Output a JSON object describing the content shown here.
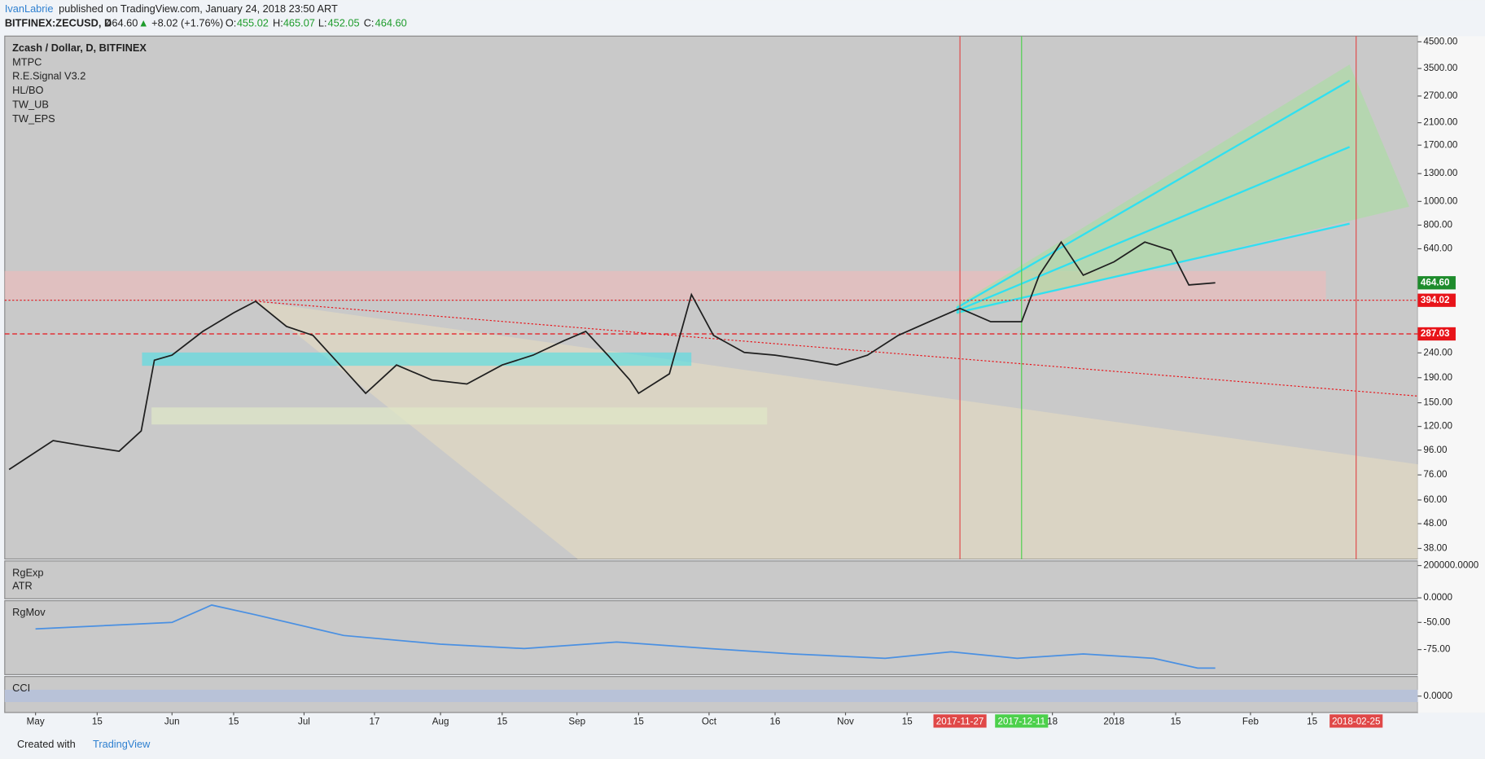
{
  "header": {
    "author": "IvanLabrie",
    "published": "published on TradingView.com, January 24, 2018 23:50 ART",
    "symbol": "BITFINEX:ZECUSD, D",
    "last": "464.60",
    "change": "+8.02 (+1.76%)",
    "open_label": "O:",
    "open": "455.02",
    "high_label": "H:",
    "high": "465.07",
    "low_label": "L:",
    "low": "452.05",
    "close_label": "C:",
    "close": "464.60"
  },
  "studies": [
    "MTPC",
    "R.E.Signal V3.2",
    "HL/BO",
    "TW_UB",
    "TW_EPS"
  ],
  "footer": {
    "created": "Created with",
    "brand": "TradingView"
  },
  "chart_data": [
    {
      "type": "line",
      "title": "Zcash / Dollar, D, BITFINEX",
      "log_scale": true,
      "color": "#1f1f1f",
      "x": [
        "2017-04-25",
        "2017-05-05",
        "2017-05-12",
        "2017-05-20",
        "2017-05-25",
        "2017-05-28",
        "2017-06-01",
        "2017-06-08",
        "2017-06-15",
        "2017-06-20",
        "2017-06-27",
        "2017-07-03",
        "2017-07-10",
        "2017-07-15",
        "2017-07-22",
        "2017-07-30",
        "2017-08-07",
        "2017-08-15",
        "2017-08-22",
        "2017-08-29",
        "2017-09-03",
        "2017-09-08",
        "2017-09-13",
        "2017-09-15",
        "2017-09-22",
        "2017-09-27",
        "2017-10-02",
        "2017-10-09",
        "2017-10-16",
        "2017-10-23",
        "2017-10-30",
        "2017-11-06",
        "2017-11-13",
        "2017-11-20",
        "2017-11-27",
        "2017-12-04",
        "2017-12-11",
        "2017-12-15",
        "2017-12-20",
        "2017-12-25",
        "2018-01-01",
        "2018-01-08",
        "2018-01-14",
        "2018-01-18",
        "2018-01-24"
      ],
      "values": [
        80,
        105,
        100,
        95,
        115,
        224,
        235,
        294,
        350,
        390,
        308,
        283,
        206,
        164,
        214,
        186,
        179,
        214,
        235,
        269,
        294,
        235,
        186,
        164,
        197,
        416,
        283,
        241,
        235,
        225,
        214,
        235,
        283,
        322,
        365,
        322,
        322,
        499,
        682,
        499,
        566,
        682,
        630,
        455,
        464.6
      ],
      "xlim": [
        "2017-04-24",
        "2018-03-11"
      ],
      "xticks": [
        {
          "value": "2017-05-01",
          "label": "May"
        },
        {
          "value": "2017-05-15",
          "label": "15"
        },
        {
          "value": "2017-06-01",
          "label": "Jun"
        },
        {
          "value": "2017-06-15",
          "label": "15"
        },
        {
          "value": "2017-07-01",
          "label": "Jul"
        },
        {
          "value": "2017-07-17",
          "label": "17"
        },
        {
          "value": "2017-08-01",
          "label": "Aug"
        },
        {
          "value": "2017-08-15",
          "label": "15"
        },
        {
          "value": "2017-09-01",
          "label": "Sep"
        },
        {
          "value": "2017-09-15",
          "label": "15"
        },
        {
          "value": "2017-10-01",
          "label": "Oct"
        },
        {
          "value": "2017-10-16",
          "label": "16"
        },
        {
          "value": "2017-11-01",
          "label": "Nov"
        },
        {
          "value": "2017-11-15",
          "label": "15"
        },
        {
          "value": "2017-12-18",
          "label": "18"
        },
        {
          "value": "2018-01-01",
          "label": "2018"
        },
        {
          "value": "2018-01-15",
          "label": "15"
        },
        {
          "value": "2018-02-01",
          "label": "Feb"
        },
        {
          "value": "2018-02-15",
          "label": "15"
        }
      ],
      "ylim": [
        34.4,
        4750
      ],
      "yticks": [
        {
          "value": 4500,
          "label": "4500.00"
        },
        {
          "value": 3500,
          "label": "3500.00"
        },
        {
          "value": 2700,
          "label": "2700.00"
        },
        {
          "value": 2100,
          "label": "2100.00"
        },
        {
          "value": 1700,
          "label": "1700.00"
        },
        {
          "value": 1300,
          "label": "1300.00"
        },
        {
          "value": 1000,
          "label": "1000.00"
        },
        {
          "value": 800,
          "label": "800.00"
        },
        {
          "value": 640,
          "label": "640.00"
        },
        {
          "value": 240,
          "label": "240.00"
        },
        {
          "value": 190,
          "label": "190.00"
        },
        {
          "value": 150,
          "label": "150.00"
        },
        {
          "value": 120,
          "label": "120.00"
        },
        {
          "value": 96,
          "label": "96.00"
        },
        {
          "value": 76,
          "label": "76.00"
        },
        {
          "value": 60,
          "label": "60.00"
        },
        {
          "value": 48,
          "label": "48.00"
        },
        {
          "value": 38,
          "label": "38.00"
        }
      ],
      "price_lines": [
        {
          "value": 464.6,
          "label": "464.60",
          "color": "#1e8c2c",
          "style": "none"
        },
        {
          "value": 394.02,
          "label": "394.02",
          "color": "#e8141a",
          "style": "dotted"
        },
        {
          "value": 287.03,
          "label": "287.03",
          "color": "#e8141a",
          "style": "dashed"
        }
      ],
      "markers": [
        {
          "x": "2017-11-27",
          "label": "2017-11-27",
          "color": "#e04848"
        },
        {
          "x": "2017-12-11",
          "label": "2017-12-11",
          "color": "#4cd04c"
        },
        {
          "x": "2018-02-25",
          "label": "2018-02-25",
          "color": "#e04848"
        }
      ]
    },
    {
      "type": "indicator",
      "labels": [
        "RgExp",
        "ATR"
      ],
      "ylim": [
        -5900,
        229000
      ],
      "yticks": [
        {
          "value": 200000,
          "label": "200000.0000"
        },
        {
          "value": 0,
          "label": "0.0000"
        }
      ]
    },
    {
      "type": "line",
      "labels": [
        "RgMov"
      ],
      "color": "#4a90e2",
      "ylim": [
        -98,
        -30
      ],
      "yticks": [
        {
          "value": -50,
          "label": "-50.00"
        },
        {
          "value": -75,
          "label": "-75.00"
        }
      ],
      "x": [
        "2017-05-01",
        "2017-06-01",
        "2017-06-10",
        "2017-06-20",
        "2017-07-10",
        "2017-08-01",
        "2017-08-20",
        "2017-09-10",
        "2017-10-01",
        "2017-10-20",
        "2017-11-10",
        "2017-11-25",
        "2017-12-10",
        "2017-12-25",
        "2018-01-10",
        "2018-01-20",
        "2018-01-24"
      ],
      "values": [
        -56,
        -50,
        -34,
        -43,
        -62,
        -70,
        -74,
        -68,
        -74,
        -79,
        -83,
        -77,
        -83,
        -79,
        -83,
        -92,
        -92
      ]
    },
    {
      "type": "indicator",
      "labels": [
        "CCI"
      ],
      "ylim": [
        -250,
        300
      ],
      "yticks": [
        {
          "value": 0,
          "label": "0.0000"
        }
      ]
    }
  ]
}
